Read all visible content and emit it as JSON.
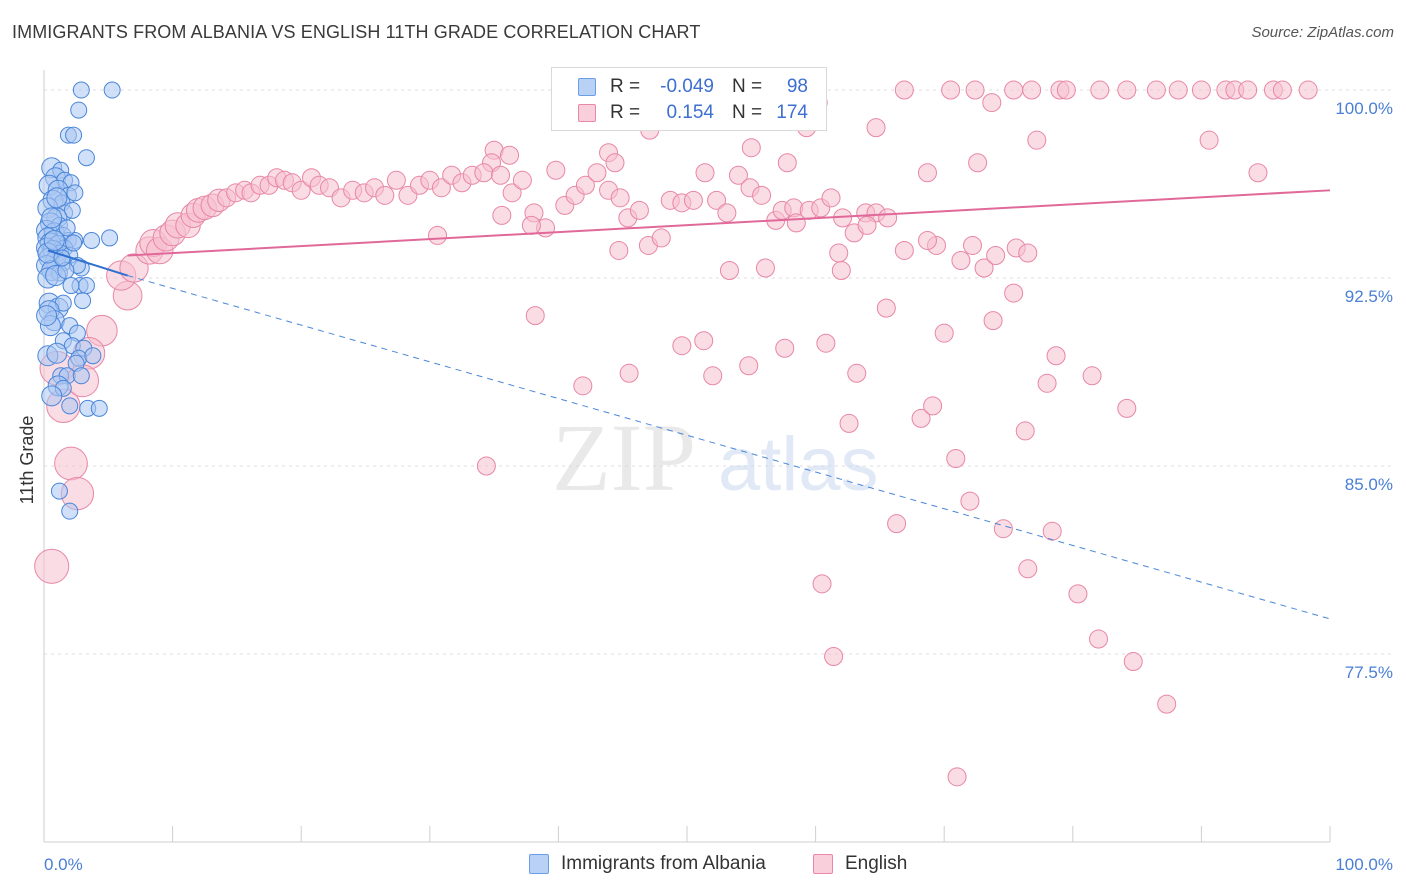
{
  "title": "IMMIGRANTS FROM ALBANIA VS ENGLISH 11TH GRADE CORRELATION CHART",
  "source": "Source: ZipAtlas.com",
  "watermark": {
    "zip": "ZIP",
    "atlas": "atlas"
  },
  "legend": {
    "r_label": "R =",
    "n_label": "N =",
    "series": [
      {
        "name": "Immigrants from Albania",
        "r": "-0.049",
        "n": "98",
        "color": "#6a9ee8",
        "fill": "#a9c6f2"
      },
      {
        "name": "English",
        "r": "0.154",
        "n": "174",
        "color": "#e887a6",
        "fill": "#f6bfd0"
      }
    ]
  },
  "chart_data": {
    "type": "scatter",
    "title": "IMMIGRANTS FROM ALBANIA VS ENGLISH 11TH GRADE CORRELATION CHART",
    "xlabel": "",
    "ylabel": "11th Grade",
    "xlim": [
      0,
      100
    ],
    "ylim": [
      70,
      100.8
    ],
    "x_tick_labels": [
      "0.0%",
      "100.0%"
    ],
    "y_ticks": [
      100.0,
      92.5,
      85.0,
      77.5
    ],
    "y_tick_labels": [
      "100.0%",
      "92.5%",
      "85.0%",
      "77.5%"
    ],
    "grid": true,
    "series": [
      {
        "name": "Immigrants from Albania",
        "color": "#4a86d9",
        "trend": {
          "solid_x": [
            0.3,
            6.5
          ],
          "solid_y": [
            93.6,
            92.6
          ],
          "dash_x": [
            6.5,
            100
          ],
          "dash_y": [
            92.6,
            78.9
          ]
        },
        "points": [
          [
            2.9,
            100
          ],
          [
            5.3,
            100
          ],
          [
            2.7,
            99.2
          ],
          [
            1.9,
            98.2
          ],
          [
            2.3,
            98.2
          ],
          [
            3.3,
            97.3
          ],
          [
            0.6,
            96.9
          ],
          [
            1.3,
            96.8
          ],
          [
            0.9,
            96.5
          ],
          [
            1.6,
            96.4
          ],
          [
            2.1,
            96.3
          ],
          [
            0.4,
            96.2
          ],
          [
            1.1,
            96.0
          ],
          [
            1.9,
            95.8
          ],
          [
            2.4,
            95.9
          ],
          [
            0.7,
            95.6
          ],
          [
            1.4,
            95.5
          ],
          [
            0.3,
            95.3
          ],
          [
            1.6,
            95.1
          ],
          [
            2.2,
            95.2
          ],
          [
            1.0,
            94.9
          ],
          [
            0.5,
            94.7
          ],
          [
            1.2,
            94.6
          ],
          [
            0.2,
            94.4
          ],
          [
            0.8,
            94.3
          ],
          [
            1.5,
            94.2
          ],
          [
            0.3,
            94.1
          ],
          [
            1.9,
            94.0
          ],
          [
            2.4,
            94.0
          ],
          [
            3.7,
            94.0
          ],
          [
            5.1,
            94.1
          ],
          [
            0.5,
            93.9
          ],
          [
            1.1,
            93.8
          ],
          [
            0.2,
            93.7
          ],
          [
            1.6,
            93.7
          ],
          [
            0.7,
            93.6
          ],
          [
            1.3,
            93.5
          ],
          [
            2.0,
            93.4
          ],
          [
            0.4,
            93.3
          ],
          [
            0.9,
            93.2
          ],
          [
            1.5,
            93.1
          ],
          [
            0.2,
            93.0
          ],
          [
            2.9,
            92.9
          ],
          [
            0.6,
            92.8
          ],
          [
            1.2,
            92.7
          ],
          [
            0.3,
            92.5
          ],
          [
            2.8,
            92.2
          ],
          [
            3.3,
            92.2
          ],
          [
            0.4,
            91.5
          ],
          [
            1.1,
            91.3
          ],
          [
            1.5,
            91.5
          ],
          [
            0.4,
            91.2
          ],
          [
            0.8,
            90.8
          ],
          [
            2.0,
            90.6
          ],
          [
            2.6,
            90.3
          ],
          [
            1.5,
            90.0
          ],
          [
            2.2,
            89.8
          ],
          [
            3.1,
            89.7
          ],
          [
            0.3,
            89.4
          ],
          [
            1.0,
            89.5
          ],
          [
            2.7,
            89.3
          ],
          [
            3.8,
            89.4
          ],
          [
            2.5,
            89.1
          ],
          [
            1.3,
            88.6
          ],
          [
            1.8,
            88.6
          ],
          [
            2.9,
            88.6
          ],
          [
            1.1,
            88.2
          ],
          [
            1.5,
            88.1
          ],
          [
            0.6,
            87.8
          ],
          [
            2.0,
            87.4
          ],
          [
            3.4,
            87.3
          ],
          [
            4.3,
            87.3
          ],
          [
            1.2,
            84.0
          ],
          [
            2.0,
            83.2
          ],
          [
            0.6,
            94.9
          ],
          [
            1.8,
            94.5
          ],
          [
            2.6,
            93.0
          ],
          [
            0.9,
            92.6
          ],
          [
            1.7,
            92.8
          ],
          [
            0.5,
            90.6
          ],
          [
            3.0,
            91.6
          ],
          [
            0.2,
            91.0
          ],
          [
            2.3,
            93.9
          ],
          [
            1.0,
            95.7
          ],
          [
            0.3,
            93.5
          ],
          [
            1.4,
            93.3
          ],
          [
            0.8,
            94.0
          ],
          [
            2.1,
            92.2
          ]
        ]
      },
      {
        "name": "English",
        "color": "#e4799c",
        "trend": {
          "solid_x": [
            6.5,
            100
          ],
          "solid_y": [
            93.4,
            96.0
          ]
        },
        "points": [
          [
            66.9,
            100
          ],
          [
            70.5,
            100
          ],
          [
            72.4,
            100
          ],
          [
            75.4,
            100
          ],
          [
            76.8,
            100
          ],
          [
            79.0,
            100
          ],
          [
            79.5,
            100
          ],
          [
            82.1,
            100
          ],
          [
            84.2,
            100
          ],
          [
            86.5,
            100
          ],
          [
            88.2,
            100
          ],
          [
            90.0,
            100
          ],
          [
            91.9,
            100
          ],
          [
            92.6,
            100
          ],
          [
            93.6,
            100
          ],
          [
            95.6,
            100
          ],
          [
            96.3,
            100
          ],
          [
            98.3,
            100
          ],
          [
            73.7,
            99.5
          ],
          [
            60.2,
            99.5
          ],
          [
            47.1,
            98.4
          ],
          [
            59.3,
            98.5
          ],
          [
            64.7,
            98.5
          ],
          [
            35.0,
            97.6
          ],
          [
            36.2,
            97.4
          ],
          [
            34.8,
            97.1
          ],
          [
            43.9,
            97.5
          ],
          [
            55.0,
            97.7
          ],
          [
            44.4,
            97.1
          ],
          [
            57.8,
            97.1
          ],
          [
            72.6,
            97.1
          ],
          [
            77.2,
            98.0
          ],
          [
            90.6,
            98.0
          ],
          [
            94.4,
            96.7
          ],
          [
            6.5,
            91.8
          ],
          [
            6.0,
            92.6
          ],
          [
            7.0,
            92.9
          ],
          [
            8.2,
            93.6
          ],
          [
            8.5,
            93.9
          ],
          [
            9.0,
            93.6
          ],
          [
            9.5,
            94.1
          ],
          [
            10.0,
            94.3
          ],
          [
            10.4,
            94.6
          ],
          [
            11.2,
            94.6
          ],
          [
            11.6,
            95.0
          ],
          [
            12.0,
            95.2
          ],
          [
            12.5,
            95.3
          ],
          [
            13.1,
            95.4
          ],
          [
            13.6,
            95.6
          ],
          [
            14.2,
            95.7
          ],
          [
            14.9,
            95.9
          ],
          [
            15.6,
            96.0
          ],
          [
            16.1,
            95.9
          ],
          [
            16.8,
            96.2
          ],
          [
            17.5,
            96.2
          ],
          [
            18.1,
            96.5
          ],
          [
            18.7,
            96.4
          ],
          [
            19.3,
            96.3
          ],
          [
            20.0,
            96.0
          ],
          [
            20.8,
            96.5
          ],
          [
            21.4,
            96.2
          ],
          [
            22.2,
            96.1
          ],
          [
            23.1,
            95.7
          ],
          [
            24.0,
            96.0
          ],
          [
            24.9,
            95.9
          ],
          [
            25.7,
            96.1
          ],
          [
            26.5,
            95.8
          ],
          [
            27.4,
            96.4
          ],
          [
            28.3,
            95.8
          ],
          [
            29.2,
            96.2
          ],
          [
            30.0,
            96.4
          ],
          [
            30.9,
            96.1
          ],
          [
            31.7,
            96.6
          ],
          [
            32.5,
            96.3
          ],
          [
            33.3,
            96.6
          ],
          [
            34.2,
            96.7
          ],
          [
            35.5,
            96.6
          ],
          [
            36.4,
            95.9
          ],
          [
            37.2,
            96.4
          ],
          [
            38.1,
            95.1
          ],
          [
            39.0,
            94.5
          ],
          [
            39.8,
            96.8
          ],
          [
            40.5,
            95.4
          ],
          [
            41.3,
            95.8
          ],
          [
            42.1,
            96.2
          ],
          [
            43.0,
            96.7
          ],
          [
            43.9,
            96.0
          ],
          [
            44.8,
            95.7
          ],
          [
            45.4,
            94.9
          ],
          [
            46.3,
            95.2
          ],
          [
            47.0,
            93.8
          ],
          [
            48.0,
            94.1
          ],
          [
            48.7,
            95.6
          ],
          [
            49.6,
            95.5
          ],
          [
            50.5,
            95.6
          ],
          [
            51.4,
            96.7
          ],
          [
            52.3,
            95.6
          ],
          [
            53.1,
            95.1
          ],
          [
            54.0,
            96.6
          ],
          [
            54.9,
            96.1
          ],
          [
            55.8,
            95.8
          ],
          [
            56.9,
            94.8
          ],
          [
            57.4,
            95.2
          ],
          [
            58.3,
            95.3
          ],
          [
            59.5,
            95.2
          ],
          [
            60.4,
            95.3
          ],
          [
            61.2,
            95.7
          ],
          [
            62.1,
            94.9
          ],
          [
            63.0,
            94.3
          ],
          [
            63.9,
            95.1
          ],
          [
            64.7,
            95.1
          ],
          [
            65.6,
            94.9
          ],
          [
            66.9,
            93.6
          ],
          [
            68.7,
            96.7
          ],
          [
            69.4,
            93.8
          ],
          [
            71.3,
            93.2
          ],
          [
            72.2,
            93.8
          ],
          [
            73.1,
            92.9
          ],
          [
            74.0,
            93.4
          ],
          [
            75.6,
            93.7
          ],
          [
            76.5,
            93.5
          ],
          [
            45.5,
            88.7
          ],
          [
            49.6,
            89.8
          ],
          [
            51.3,
            90.0
          ],
          [
            52.0,
            88.6
          ],
          [
            54.8,
            89.0
          ],
          [
            56.1,
            92.9
          ],
          [
            57.6,
            89.7
          ],
          [
            60.8,
            89.9
          ],
          [
            62.6,
            86.7
          ],
          [
            63.2,
            88.7
          ],
          [
            68.2,
            86.9
          ],
          [
            69.1,
            87.4
          ],
          [
            70.9,
            85.3
          ],
          [
            72.0,
            83.6
          ],
          [
            74.6,
            82.5
          ],
          [
            76.5,
            80.9
          ],
          [
            78.4,
            82.4
          ],
          [
            80.4,
            79.9
          ],
          [
            82.0,
            78.1
          ],
          [
            84.7,
            77.2
          ],
          [
            87.3,
            75.5
          ],
          [
            62.0,
            92.8
          ],
          [
            65.5,
            91.3
          ],
          [
            70.0,
            90.3
          ],
          [
            73.8,
            90.8
          ],
          [
            75.4,
            91.9
          ],
          [
            78.7,
            89.4
          ],
          [
            81.5,
            88.6
          ],
          [
            84.2,
            87.3
          ],
          [
            38.2,
            91.0
          ],
          [
            41.9,
            88.2
          ],
          [
            1.0,
            88.9
          ],
          [
            1.5,
            87.4
          ],
          [
            2.1,
            85.1
          ],
          [
            2.6,
            83.9
          ],
          [
            0.6,
            81.0
          ],
          [
            4.5,
            90.4
          ],
          [
            3.5,
            89.5
          ],
          [
            3.0,
            88.4
          ],
          [
            34.4,
            85.0
          ],
          [
            61.4,
            77.4
          ],
          [
            71.0,
            72.6
          ],
          [
            60.5,
            80.3
          ],
          [
            66.3,
            82.7
          ],
          [
            76.3,
            86.4
          ],
          [
            78.0,
            88.3
          ],
          [
            53.3,
            92.8
          ],
          [
            30.6,
            94.2
          ],
          [
            37.9,
            94.6
          ],
          [
            35.6,
            95.0
          ],
          [
            68.7,
            94.0
          ],
          [
            58.5,
            94.7
          ],
          [
            44.7,
            93.6
          ],
          [
            61.8,
            93.5
          ],
          [
            64.0,
            94.6
          ]
        ]
      }
    ]
  }
}
